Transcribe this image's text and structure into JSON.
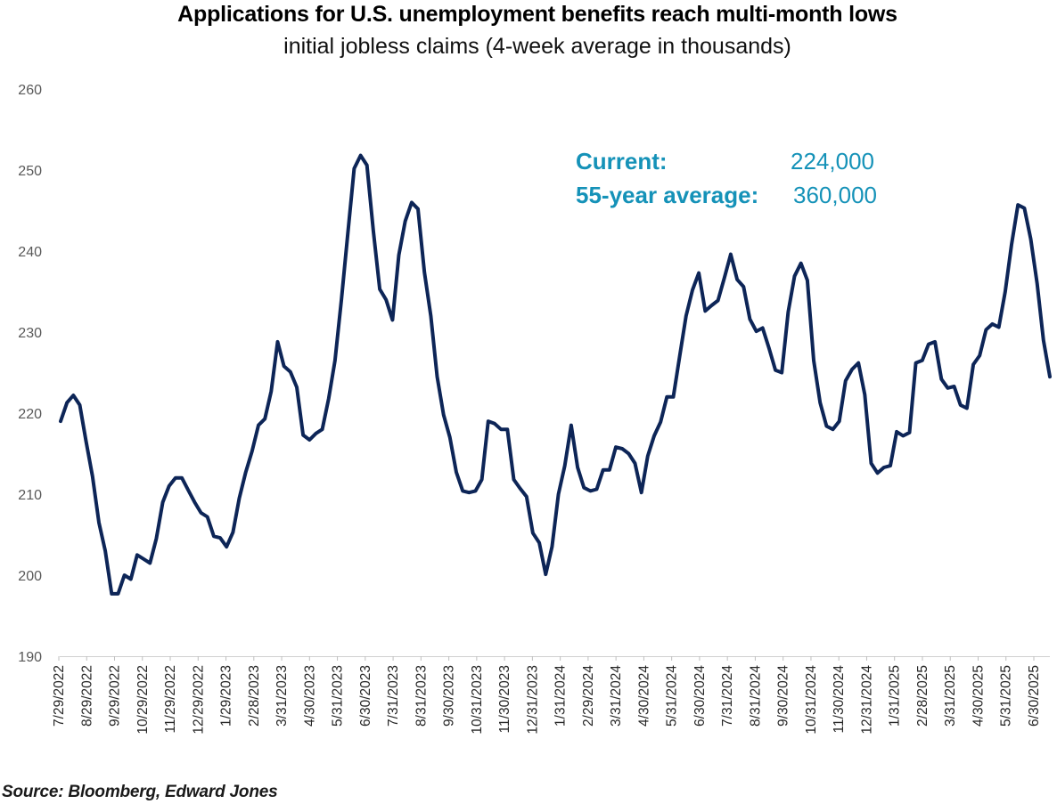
{
  "chart_data": {
    "type": "line",
    "title": "Applications for U.S. unemployment benefits reach multi-month lows",
    "subtitle": "initial jobless claims (4-week average in thousands)",
    "xlabel": "",
    "ylabel": "",
    "ylim": [
      190,
      260
    ],
    "yticks": [
      190,
      200,
      210,
      220,
      230,
      240,
      250,
      260
    ],
    "grid": false,
    "legend": "none",
    "xtick_labels": [
      "7/29/2022",
      "8/29/2022",
      "9/29/2022",
      "10/29/2022",
      "11/29/2022",
      "12/29/2022",
      "1/29/2023",
      "2/28/2023",
      "3/31/2023",
      "4/30/2023",
      "5/31/2023",
      "6/30/2023",
      "7/31/2023",
      "8/31/2023",
      "9/30/2023",
      "10/31/2023",
      "11/30/2023",
      "12/31/2023",
      "1/31/2024",
      "2/29/2024",
      "3/31/2024",
      "4/30/2024",
      "5/31/2024",
      "6/30/2024",
      "7/31/2024",
      "8/31/2024",
      "9/30/2024",
      "10/31/2024",
      "11/30/2024",
      "12/31/2024",
      "1/31/2025",
      "2/28/2025",
      "3/31/2025",
      "4/30/2025",
      "5/31/2025",
      "6/30/2025"
    ],
    "series": [
      {
        "name": "Initial jobless claims (4-week average, thousands)",
        "color": "#0d2557",
        "values": [
          219,
          221.3,
          222.2,
          221,
          216.5,
          212.2,
          206.5,
          203,
          197.7,
          197.7,
          200,
          199.5,
          202.5,
          202,
          201.5,
          204.5,
          209,
          211,
          212,
          212,
          210.5,
          209,
          207.7,
          207.2,
          204.8,
          204.6,
          203.5,
          205.3,
          209.5,
          212.7,
          215.3,
          218.5,
          219.3,
          222.7,
          228.8,
          225.8,
          225.1,
          223.2,
          217.3,
          216.7,
          217.5,
          218,
          221.8,
          226.5,
          234,
          242.2,
          250.2,
          251.8,
          250.6,
          242.5,
          235.3,
          234,
          231.5,
          239.5,
          243.7,
          246,
          245.2,
          237.4,
          232,
          224.5,
          219.8,
          217,
          212.7,
          210.4,
          210.2,
          210.4,
          211.8,
          219,
          218.7,
          218,
          218,
          211.8,
          210.7,
          209.7,
          205.2,
          204,
          200.1,
          203.5,
          210,
          213.5,
          218.5,
          213.3,
          210.8,
          210.4,
          210.6,
          213,
          213,
          215.8,
          215.6,
          215,
          213.8,
          210.2,
          214.7,
          217.2,
          218.9,
          222,
          222,
          227,
          232,
          235.2,
          237.3,
          232.6,
          233.3,
          233.9,
          236.7,
          239.6,
          236.5,
          235.6,
          231.6,
          230.1,
          230.5,
          228,
          225.3,
          225,
          232.5,
          236.9,
          238.5,
          236.4,
          226.5,
          221.3,
          218.4,
          218,
          219,
          224,
          225.4,
          226.2,
          222.3,
          213.8,
          212.6,
          213.3,
          213.5,
          217.7,
          217.2,
          217.6,
          226.2,
          226.5,
          228.5,
          228.8,
          224.2,
          223.1,
          223.3,
          221,
          220.6,
          226,
          227.1,
          230.3,
          231,
          230.6,
          235,
          240.8,
          245.7,
          245.3,
          241.5,
          236,
          229,
          224.5
        ]
      }
    ],
    "annotations": [
      {
        "label": "Current:",
        "value": "224,000"
      },
      {
        "label": "55-year average:",
        "value": "360,000"
      }
    ],
    "source": "Source: Bloomberg, Edward Jones"
  }
}
